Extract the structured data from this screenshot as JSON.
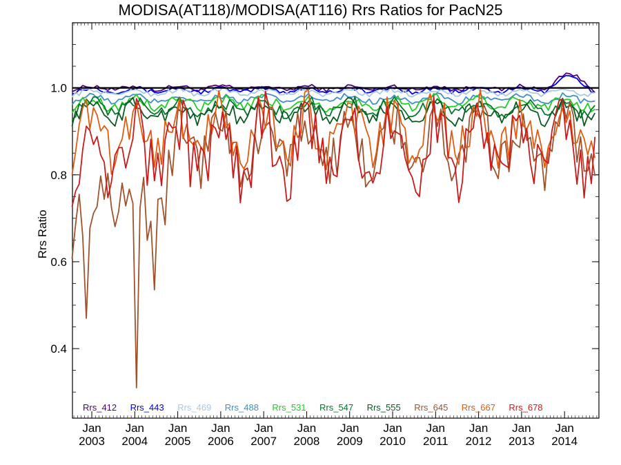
{
  "chart_data": {
    "type": "line",
    "title": "MODISA(AT118)/MODISA(AT116)  Rrs Ratios for PacN25",
    "xlabel": "",
    "ylabel": "Rrs Ratio",
    "xlim": [
      2002.55,
      2014.8
    ],
    "ylim": [
      0.24,
      1.15
    ],
    "y_ticks": [
      "0.4",
      "0.6",
      "0.8",
      "1.0"
    ],
    "x_ticks": [
      {
        "top": "Jan",
        "bottom": "2003",
        "x": 2003
      },
      {
        "top": "Jan",
        "bottom": "2004",
        "x": 2004
      },
      {
        "top": "Jan",
        "bottom": "2005",
        "x": 2005
      },
      {
        "top": "Jan",
        "bottom": "2006",
        "x": 2006
      },
      {
        "top": "Jan",
        "bottom": "2007",
        "x": 2007
      },
      {
        "top": "Jan",
        "bottom": "2008",
        "x": 2008
      },
      {
        "top": "Jan",
        "bottom": "2009",
        "x": 2009
      },
      {
        "top": "Jan",
        "bottom": "2010",
        "x": 2010
      },
      {
        "top": "Jan",
        "bottom": "2011",
        "x": 2011
      },
      {
        "top": "Jan",
        "bottom": "2012",
        "x": 2012
      },
      {
        "top": "Jan",
        "bottom": "2013",
        "x": 2013
      },
      {
        "top": "Jan",
        "bottom": "2014",
        "x": 2014
      }
    ],
    "reference_line": 1.0,
    "legend_position": "bottom",
    "series": [
      {
        "name": "Rrs_412",
        "color": "#4b0082"
      },
      {
        "name": "Rrs_443",
        "color": "#0000ee"
      },
      {
        "name": "Rrs_469",
        "color": "#a8c8e8"
      },
      {
        "name": "Rrs_488",
        "color": "#3f8fc8"
      },
      {
        "name": "Rrs_531",
        "color": "#22cc22"
      },
      {
        "name": "Rrs_547",
        "color": "#007a2a"
      },
      {
        "name": "Rrs_555",
        "color": "#0a5a22"
      },
      {
        "name": "Rrs_645",
        "color": "#a0522d"
      },
      {
        "name": "Rrs_667",
        "color": "#e35b0f"
      },
      {
        "name": "Rrs_678",
        "color": "#cc1a1a"
      }
    ],
    "x_start": 2002.54,
    "x_step": 0.08333
  }
}
